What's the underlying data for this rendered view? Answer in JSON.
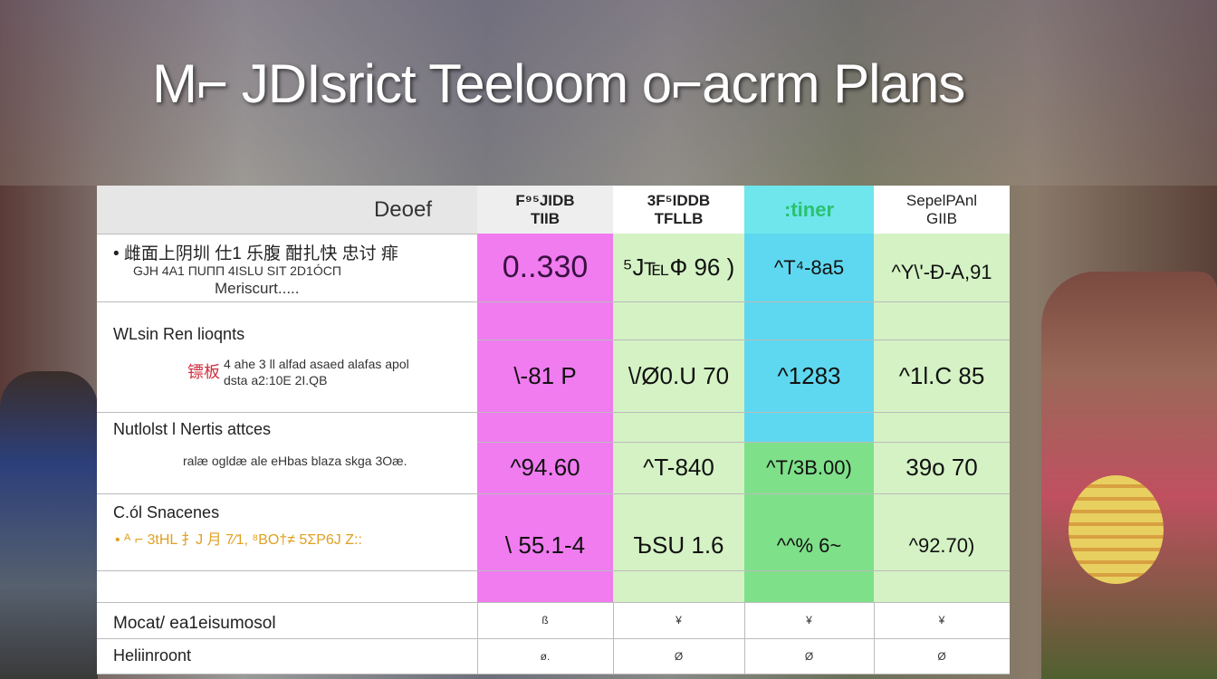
{
  "title": "M⌐ JDIsrict Teeloom o⌐acrm Plans",
  "colors": {
    "magenta": "#f07cf0",
    "light_green": "#d4f2c4",
    "cyan": "#5ed8f0",
    "green": "#7fe08a",
    "header_cyan": "#6ee6ec"
  },
  "table": {
    "corner": "Deoef",
    "columns": [
      {
        "line1": "F⁹⁵JIDB",
        "line2": "TIIB"
      },
      {
        "line1": "3F⁵IDDB",
        "line2": "TFLLB"
      },
      {
        "line1": ":tiner",
        "line2": ""
      },
      {
        "line1": "SepelPAnl",
        "line2": "GIIB"
      }
    ],
    "rows": [
      {
        "title": "• 雌面上阴圳 仕1 乐腹 酣扎快 忠讨 痱",
        "sub": "GJH 4A1 ΠUПП 4ISLU SIT 2D1ÓCΠ",
        "sub2": "Meriscurt.....",
        "values": [
          "0..330",
          "⁵J℡Ф 96 )",
          "^T⁴-8a5",
          "^Y\\'-Ð-A,91"
        ]
      },
      {
        "title": "WLsin Ren lioqnts",
        "sub": "4 ahe 3 ll alfad asaed alafas apol",
        "sub2": "dsta a2:10E 2I.QB",
        "badge": "镖板",
        "values": [
          "\\-81 P",
          "\\/Ø0.U 70",
          "^1283",
          "^1l.C 85"
        ]
      },
      {
        "title": "Nutlolst l Nertis attces",
        "sub": "ralæ ogldæ ale eHbas blaza skga 3Oæ.",
        "values": [
          "^94.60",
          "^T-840",
          "^T/3B.00)",
          "39o 70"
        ]
      },
      {
        "title": "C.ól Snacenes",
        "sub": "• ᴬ ⌐ 3tHL 扌J 月 7⁄1, ⁸BO†≠ 5ΣΡ6J Ζ::",
        "values": [
          "\\ 55.1-4",
          "ЪSU 1.6",
          "^^% 6~",
          "^92.70)"
        ]
      }
    ],
    "footer_rows": [
      {
        "label": "Mocat/ ea1eisumosol",
        "values": [
          "ß",
          "¥",
          "¥",
          "¥"
        ]
      },
      {
        "label": "Heliinroont",
        "values": [
          "ø.",
          "Ø",
          "Ø",
          "Ø"
        ]
      }
    ]
  }
}
